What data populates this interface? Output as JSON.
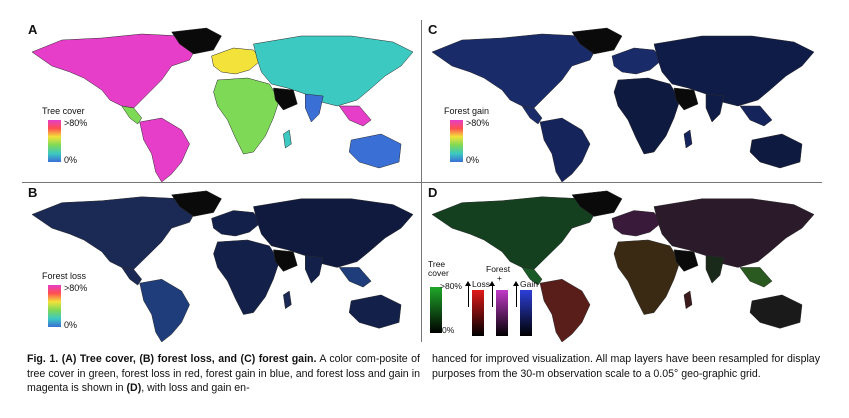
{
  "panels": {
    "A": {
      "label": "A",
      "legend_title": "Tree cover",
      "hi": ">80%",
      "lo": "0%"
    },
    "B": {
      "label": "B",
      "legend_title": "Forest loss",
      "hi": ">80%",
      "lo": "0%"
    },
    "C": {
      "label": "C",
      "legend_title": "Forest gain",
      "hi": ">80%",
      "lo": "0%"
    },
    "D": {
      "label": "D",
      "tree_title_1": "Tree",
      "tree_title_2": "cover",
      "hi": ">80%",
      "lo": "0%",
      "forest_label": "Forest",
      "plus": "+",
      "loss_label": "Loss",
      "gain_label": "Gain"
    }
  },
  "colors": {
    "land": "#0a0a0a",
    "tree_ramp": [
      "#3a6fd6",
      "#3cc9c2",
      "#7ed957",
      "#f2e23a",
      "#ff4f4f",
      "#e63ec8"
    ],
    "loss_ramp": [
      "#3a6fd6",
      "#3cc9c2",
      "#7ed957",
      "#f2e23a",
      "#ff4f4f",
      "#e63ec8"
    ],
    "gain_ramp": [
      "#3a6fd6",
      "#3cc9c2",
      "#7ed957",
      "#f2e23a",
      "#ff4f4f",
      "#e63ec8"
    ],
    "d_tree": [
      "#000000",
      "#1fa82a"
    ],
    "d_loss": [
      "#000000",
      "#e01a1a"
    ],
    "d_both": [
      "#000000",
      "#c23ac8"
    ],
    "d_gain": [
      "#000000",
      "#2c3fd8"
    ]
  },
  "caption": {
    "fig": "Fig. 1.",
    "bold": "(A) Tree cover, (B) forest loss, and (C) forest gain.",
    "text1": "A color com-posite of tree cover in green, forest loss in red, forest gain in blue, and forest loss and gain in magenta is shown in",
    "d_ref": "(D)",
    "text2": ", with loss and gain en-hanced for improved visualization. All map layers have been resampled for display purposes from the 30-m observation scale to a 0.05° geo-graphic grid."
  }
}
